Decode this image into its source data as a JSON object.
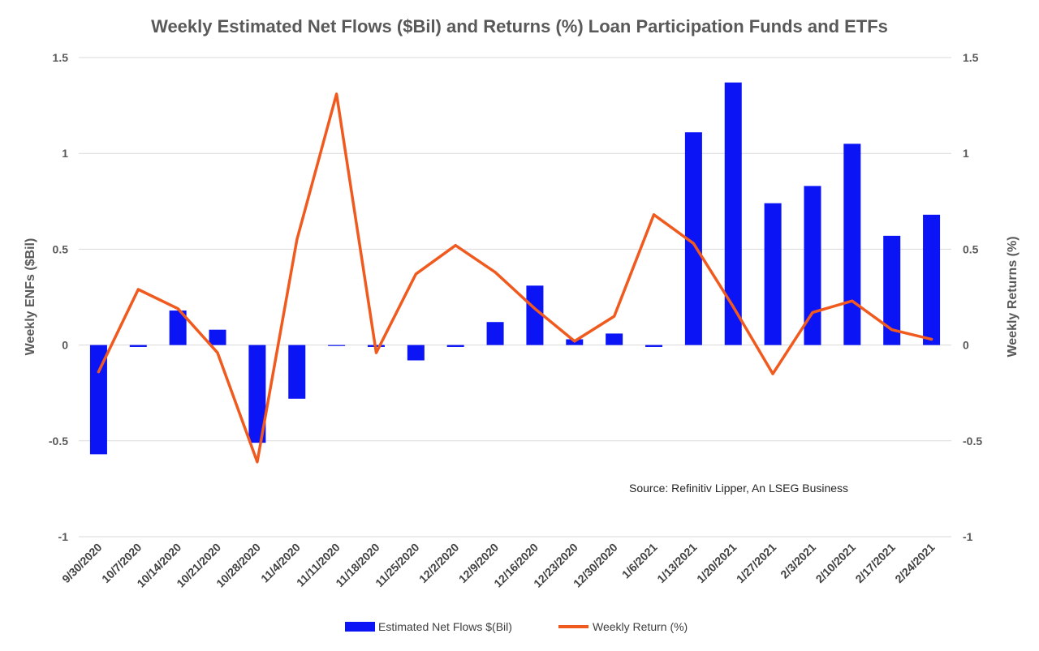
{
  "chart_data": {
    "type": "bar",
    "title": "Weekly Estimated Net Flows ($Bil) and Returns (%) Loan Participation Funds and ETFs",
    "ylabel": "Weekly ENFs ($Bil)",
    "ylabel_right": "Weekly Returns (%)",
    "ylim": [
      -1,
      1.5
    ],
    "ylim_right": [
      -1,
      1.5
    ],
    "yticks": [
      "-1",
      "-0.5",
      "0",
      "0.5",
      "1",
      "1.5"
    ],
    "yticks_right": [
      "-1",
      "-0.5",
      "0",
      "0.5",
      "1",
      "1.5"
    ],
    "categories": [
      "9/30/2020",
      "10/7/2020",
      "10/14/2020",
      "10/21/2020",
      "10/28/2020",
      "11/4/2020",
      "11/11/2020",
      "11/18/2020",
      "11/25/2020",
      "12/2/2020",
      "12/9/2020",
      "12/16/2020",
      "12/23/2020",
      "12/30/2020",
      "1/6/2021",
      "1/13/2021",
      "1/20/2021",
      "1/27/2021",
      "2/3/2021",
      "2/10/2021",
      "2/17/2021",
      "2/24/2021"
    ],
    "series": [
      {
        "name": "Estimated Net Flows $(Bil)",
        "type": "bar",
        "axis": "left",
        "color": "#0a14f5",
        "values": [
          -0.57,
          -0.01,
          0.18,
          0.08,
          -0.51,
          -0.28,
          -0.005,
          -0.01,
          -0.08,
          -0.01,
          0.12,
          0.31,
          0.03,
          0.06,
          -0.01,
          1.11,
          1.37,
          0.74,
          0.83,
          1.05,
          0.57,
          0.68
        ]
      },
      {
        "name": "Weekly Return (%)",
        "type": "line",
        "axis": "right",
        "color": "#f05a1e",
        "values": [
          -0.14,
          0.29,
          0.19,
          -0.04,
          -0.61,
          0.55,
          1.31,
          -0.04,
          0.37,
          0.52,
          0.38,
          0.19,
          0.02,
          0.15,
          0.68,
          0.53,
          0.2,
          -0.15,
          0.17,
          0.23,
          0.08,
          0.03
        ]
      }
    ],
    "annotation": "Source: Refinitiv Lipper, An LSEG Business",
    "grid": true,
    "legend_position": "bottom"
  }
}
